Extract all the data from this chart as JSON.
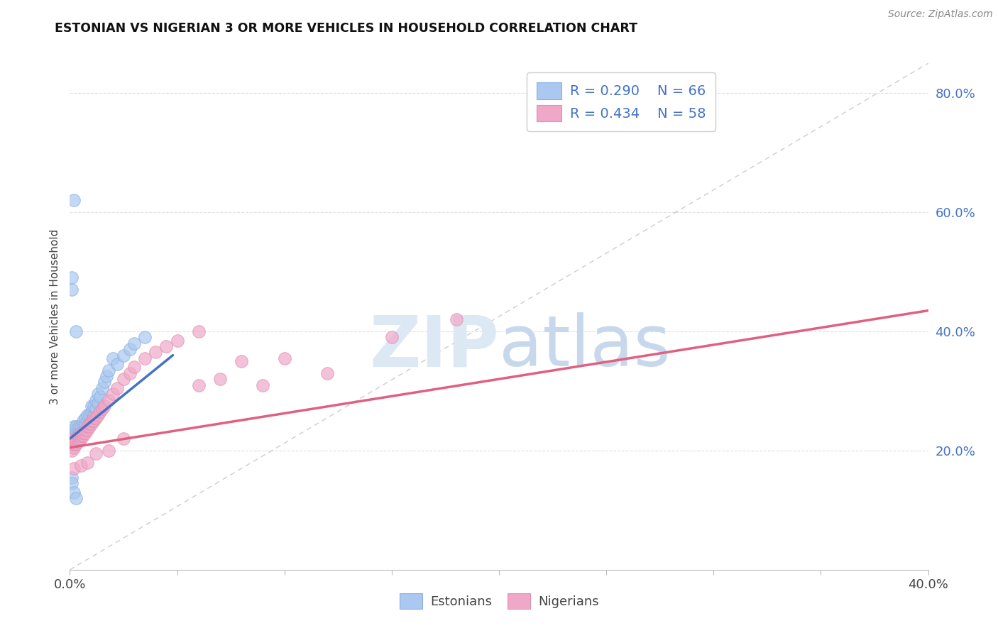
{
  "title": "ESTONIAN VS NIGERIAN 3 OR MORE VEHICLES IN HOUSEHOLD CORRELATION CHART",
  "source": "Source: ZipAtlas.com",
  "ylabel": "3 or more Vehicles in Household",
  "xlim": [
    0.0,
    0.4
  ],
  "ylim": [
    0.0,
    0.85
  ],
  "xtick_positions": [
    0.0,
    0.05,
    0.1,
    0.15,
    0.2,
    0.25,
    0.3,
    0.35,
    0.4
  ],
  "xticklabels": [
    "0.0%",
    "",
    "",
    "",
    "",
    "",
    "",
    "",
    "40.0%"
  ],
  "ytick_positions": [
    0.2,
    0.4,
    0.6,
    0.8
  ],
  "yticklabels": [
    "20.0%",
    "40.0%",
    "60.0%",
    "80.0%"
  ],
  "estonian_color": "#aac8f0",
  "nigerian_color": "#f0a8c8",
  "estonian_line_color": "#4472c4",
  "nigerian_line_color": "#e06080",
  "ref_line_color": "#c8c8c8",
  "watermark_color": "#dde8f5",
  "background_color": "#ffffff",
  "estonian_label": "Estonians",
  "nigerian_label": "Nigerians",
  "grid_color": "#e0e0e0",
  "estonian_x": [
    0.001,
    0.001,
    0.001,
    0.001,
    0.001,
    0.002,
    0.002,
    0.002,
    0.002,
    0.002,
    0.002,
    0.002,
    0.003,
    0.003,
    0.003,
    0.003,
    0.003,
    0.003,
    0.004,
    0.004,
    0.004,
    0.004,
    0.004,
    0.005,
    0.005,
    0.005,
    0.005,
    0.006,
    0.006,
    0.006,
    0.007,
    0.007,
    0.007,
    0.008,
    0.008,
    0.008,
    0.009,
    0.009,
    0.01,
    0.01,
    0.01,
    0.011,
    0.011,
    0.012,
    0.012,
    0.013,
    0.013,
    0.014,
    0.015,
    0.016,
    0.017,
    0.018,
    0.02,
    0.022,
    0.025,
    0.028,
    0.03,
    0.035,
    0.001,
    0.001,
    0.002,
    0.003,
    0.001,
    0.001,
    0.002,
    0.003
  ],
  "estonian_y": [
    0.215,
    0.22,
    0.225,
    0.23,
    0.21,
    0.215,
    0.22,
    0.225,
    0.23,
    0.235,
    0.24,
    0.21,
    0.215,
    0.22,
    0.225,
    0.23,
    0.235,
    0.24,
    0.22,
    0.225,
    0.23,
    0.235,
    0.24,
    0.225,
    0.23,
    0.235,
    0.24,
    0.23,
    0.24,
    0.25,
    0.235,
    0.245,
    0.255,
    0.24,
    0.25,
    0.26,
    0.245,
    0.26,
    0.25,
    0.265,
    0.275,
    0.26,
    0.275,
    0.27,
    0.285,
    0.28,
    0.295,
    0.29,
    0.305,
    0.315,
    0.325,
    0.335,
    0.355,
    0.345,
    0.36,
    0.37,
    0.38,
    0.39,
    0.47,
    0.49,
    0.62,
    0.4,
    0.155,
    0.145,
    0.13,
    0.12
  ],
  "nigerian_x": [
    0.001,
    0.001,
    0.001,
    0.002,
    0.002,
    0.002,
    0.002,
    0.003,
    0.003,
    0.003,
    0.004,
    0.004,
    0.004,
    0.005,
    0.005,
    0.005,
    0.006,
    0.006,
    0.007,
    0.007,
    0.008,
    0.008,
    0.009,
    0.009,
    0.01,
    0.01,
    0.011,
    0.011,
    0.012,
    0.013,
    0.014,
    0.015,
    0.016,
    0.018,
    0.02,
    0.022,
    0.025,
    0.028,
    0.03,
    0.035,
    0.04,
    0.045,
    0.05,
    0.06,
    0.07,
    0.08,
    0.09,
    0.1,
    0.12,
    0.15,
    0.18,
    0.002,
    0.005,
    0.008,
    0.012,
    0.018,
    0.025,
    0.06
  ],
  "nigerian_y": [
    0.2,
    0.21,
    0.215,
    0.205,
    0.21,
    0.215,
    0.22,
    0.21,
    0.215,
    0.22,
    0.215,
    0.22,
    0.225,
    0.22,
    0.225,
    0.23,
    0.225,
    0.23,
    0.23,
    0.235,
    0.235,
    0.24,
    0.24,
    0.245,
    0.245,
    0.25,
    0.25,
    0.255,
    0.255,
    0.26,
    0.265,
    0.27,
    0.275,
    0.285,
    0.295,
    0.305,
    0.32,
    0.33,
    0.34,
    0.355,
    0.365,
    0.375,
    0.385,
    0.4,
    0.32,
    0.35,
    0.31,
    0.355,
    0.33,
    0.39,
    0.42,
    0.17,
    0.175,
    0.18,
    0.195,
    0.2,
    0.22,
    0.31
  ],
  "estonian_trend_x": [
    0.0,
    0.048
  ],
  "estonian_trend_y": [
    0.22,
    0.36
  ],
  "nigerian_trend_x": [
    0.0,
    0.4
  ],
  "nigerian_trend_y": [
    0.205,
    0.435
  ],
  "ref_line_x": [
    0.0,
    0.4
  ],
  "ref_line_y": [
    0.0,
    0.85
  ]
}
